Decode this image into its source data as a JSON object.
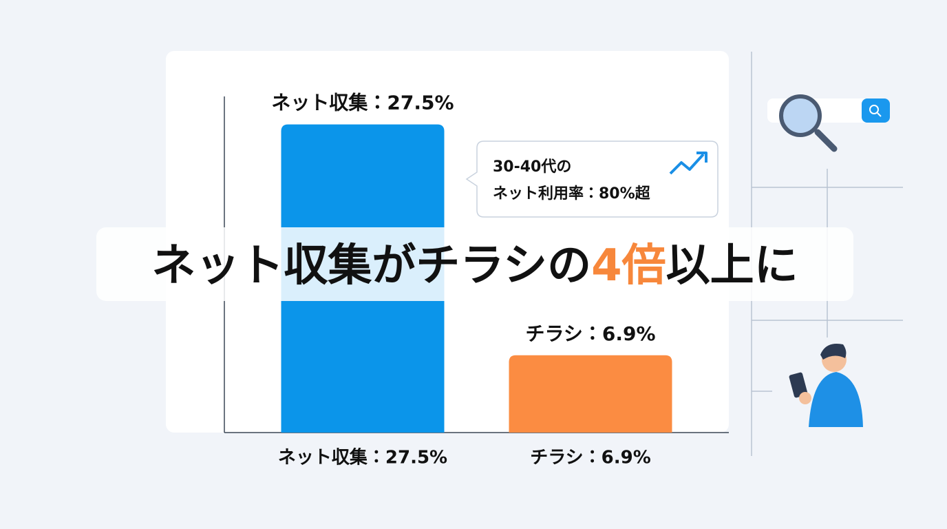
{
  "chart_data": {
    "type": "bar",
    "categories": [
      "ネット収集：27.5%",
      "チラシ：6.9%"
    ],
    "values": [
      27.5,
      6.9
    ],
    "value_labels": [
      "ネット収集：27.5%",
      "チラシ：6.9%"
    ],
    "colors": [
      "#0b95ea",
      "#fb8c42"
    ],
    "ylim": [
      0,
      30
    ],
    "annotations": [
      "30-40代の",
      "ネット利用率：80%超"
    ],
    "headline": [
      "ネット収集がチラシの",
      "4倍",
      "以上に"
    ],
    "headline_highlight_color": "#f7873b"
  }
}
